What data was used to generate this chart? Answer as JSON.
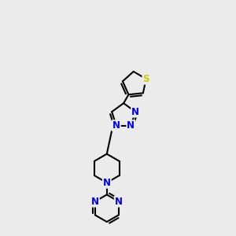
{
  "background_color": "#ebebeb",
  "bond_color": "#000000",
  "N_color": "#0000ee",
  "S_color": "#cccc00",
  "bond_width": 1.5,
  "font_size_atom": 8.5,
  "xlim": [
    0.0,
    1.0
  ],
  "ylim": [
    0.3,
    3.2
  ]
}
